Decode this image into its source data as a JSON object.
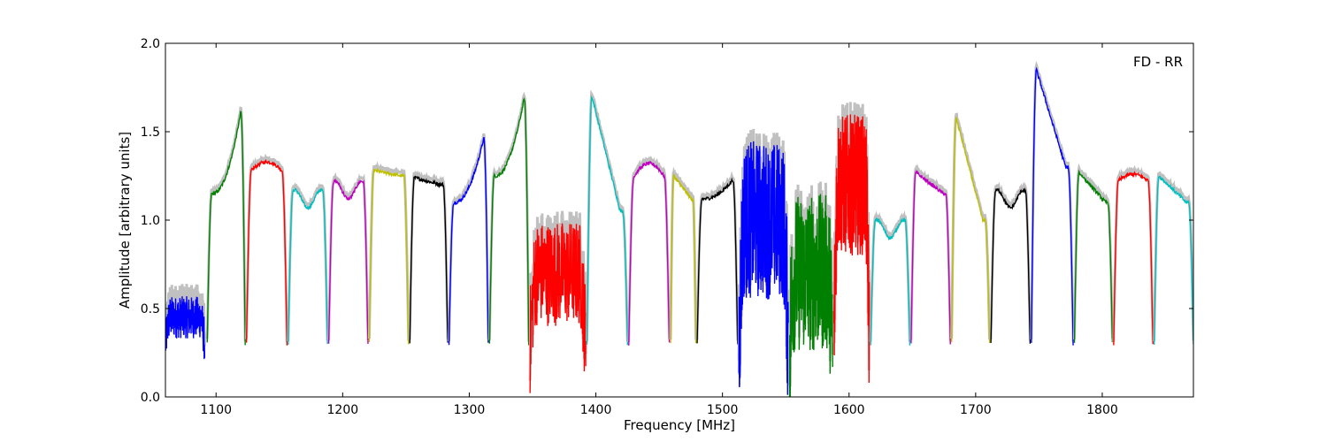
{
  "chart_data": {
    "type": "line",
    "title": "",
    "annotation": "FD - RR",
    "xlabel": "Frequency [MHz]",
    "ylabel": "Amplitude [arbitrary units]",
    "xlim": [
      1060,
      1872
    ],
    "ylim": [
      0.0,
      2.0
    ],
    "xticks": [
      1100,
      1200,
      1300,
      1400,
      1500,
      1600,
      1700,
      1800
    ],
    "yticks": [
      0.0,
      0.5,
      1.0,
      1.5,
      2.0
    ],
    "ytick_labels": [
      "0.0",
      "0.5",
      "1.0",
      "1.5",
      "2.0"
    ],
    "grid": false,
    "background_color": "#c0c0c0",
    "color_cycle": [
      "#0000ff",
      "#008000",
      "#ff0000",
      "#00bfbf",
      "#bf00bf",
      "#bfbf00",
      "#000000"
    ],
    "bands": [
      {
        "x0": 1060,
        "x1": 1091,
        "shape": "noisy",
        "level": 0.45,
        "noise": 0.12
      },
      {
        "x0": 1093,
        "x1": 1123,
        "shape": "rise",
        "level": 1.15,
        "peak": 1.57
      },
      {
        "x0": 1124,
        "x1": 1156,
        "shape": "hump",
        "level": 1.25,
        "peak": 1.33
      },
      {
        "x0": 1157,
        "x1": 1188,
        "shape": "flat",
        "level": 1.12
      },
      {
        "x0": 1189,
        "x1": 1220,
        "shape": "flat",
        "level": 1.17
      },
      {
        "x0": 1221,
        "x1": 1252,
        "shape": "fall",
        "level": 1.25,
        "peak": 1.28
      },
      {
        "x0": 1253,
        "x1": 1283,
        "shape": "fall",
        "level": 1.2,
        "peak": 1.24
      },
      {
        "x0": 1284,
        "x1": 1315,
        "shape": "rise",
        "level": 1.1,
        "peak": 1.43
      },
      {
        "x0": 1316,
        "x1": 1347,
        "shape": "rise",
        "level": 1.25,
        "peak": 1.65
      },
      {
        "x0": 1348,
        "x1": 1392,
        "shape": "noisy",
        "level": 0.7,
        "noise": 0.3
      },
      {
        "x0": 1393,
        "x1": 1425,
        "shape": "fall",
        "level": 1.05,
        "peak": 1.7
      },
      {
        "x0": 1426,
        "x1": 1458,
        "shape": "hump",
        "level": 1.2,
        "peak": 1.32
      },
      {
        "x0": 1459,
        "x1": 1479,
        "shape": "fall",
        "level": 1.12,
        "peak": 1.25
      },
      {
        "x0": 1480,
        "x1": 1512,
        "shape": "rise",
        "level": 1.12,
        "peak": 1.22
      },
      {
        "x0": 1513,
        "x1": 1552,
        "shape": "noisy",
        "level": 1.0,
        "noise": 0.45
      },
      {
        "x0": 1553,
        "x1": 1587,
        "shape": "noisy",
        "level": 0.7,
        "noise": 0.45
      },
      {
        "x0": 1588,
        "x1": 1616,
        "shape": "noisy",
        "level": 1.2,
        "noise": 0.4
      },
      {
        "x0": 1617,
        "x1": 1648,
        "shape": "flat",
        "level": 0.95
      },
      {
        "x0": 1649,
        "x1": 1680,
        "shape": "fall",
        "level": 1.15,
        "peak": 1.27
      },
      {
        "x0": 1681,
        "x1": 1711,
        "shape": "fall",
        "level": 1.0,
        "peak": 1.58
      },
      {
        "x0": 1712,
        "x1": 1743,
        "shape": "flat",
        "level": 1.12
      },
      {
        "x0": 1744,
        "x1": 1777,
        "shape": "fall",
        "level": 1.3,
        "peak": 1.85
      },
      {
        "x0": 1778,
        "x1": 1808,
        "shape": "fall",
        "level": 1.1,
        "peak": 1.27
      },
      {
        "x0": 1809,
        "x1": 1840,
        "shape": "hump",
        "level": 1.2,
        "peak": 1.26
      },
      {
        "x0": 1841,
        "x1": 1872,
        "shape": "fall",
        "level": 1.1,
        "peak": 1.25
      }
    ]
  }
}
